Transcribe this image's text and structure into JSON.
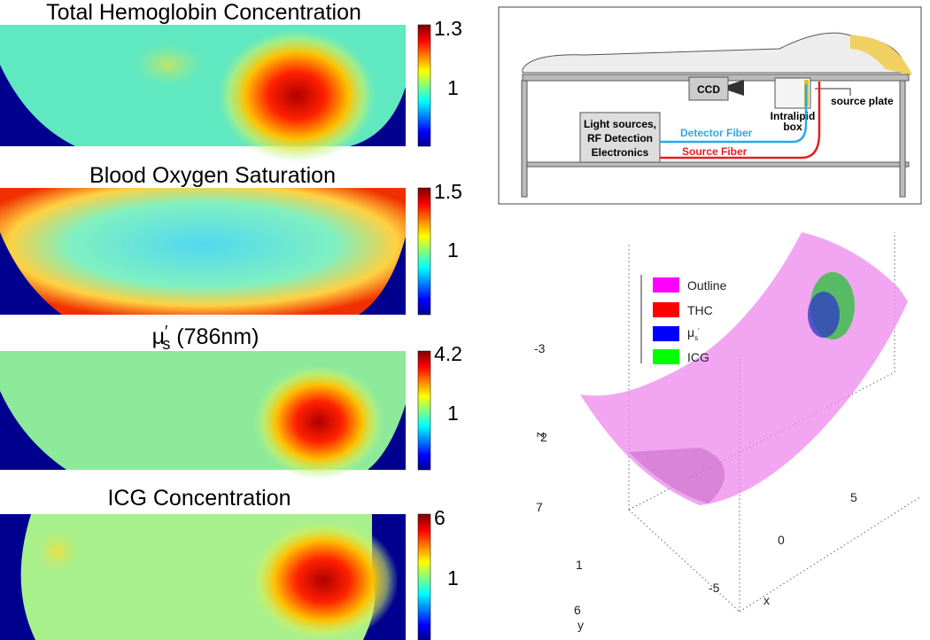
{
  "panels": [
    {
      "title": "Total Hemoglobin Concentration",
      "colorbar_ticks": [
        1.3,
        1
      ]
    },
    {
      "title": "Blood Oxygen Saturation",
      "colorbar_ticks": [
        1.5,
        1
      ]
    },
    {
      "title_parts": {
        "symbol": "μ",
        "prime": "′",
        "subscript": "s",
        "rest": " (786nm)"
      },
      "colorbar_ticks": [
        4.2,
        1
      ]
    },
    {
      "title": "ICG Concentration",
      "colorbar_ticks": [
        6,
        1
      ]
    }
  ],
  "setup_diagram": {
    "ccd": "CCD",
    "electronics": [
      "Light sources,",
      "RF Detection",
      "Electronics"
    ],
    "detector_fiber": "Detector Fiber",
    "source_fiber": "Source Fiber",
    "intralipid_box": [
      "Intralipid",
      "box"
    ],
    "source_plate": "source plate"
  },
  "plot3d": {
    "legend": [
      "Outline",
      "THC",
      "ICG"
    ],
    "legend_mu": {
      "symbol": "μ",
      "subscript": "s",
      "prime": "′"
    },
    "z_ticks": [
      -3,
      2,
      7
    ],
    "y_ticks": [
      1,
      6
    ],
    "x_ticks": [
      5,
      0,
      -5
    ],
    "axis_labels": {
      "x": "x",
      "y": "y",
      "z": "z"
    }
  }
}
